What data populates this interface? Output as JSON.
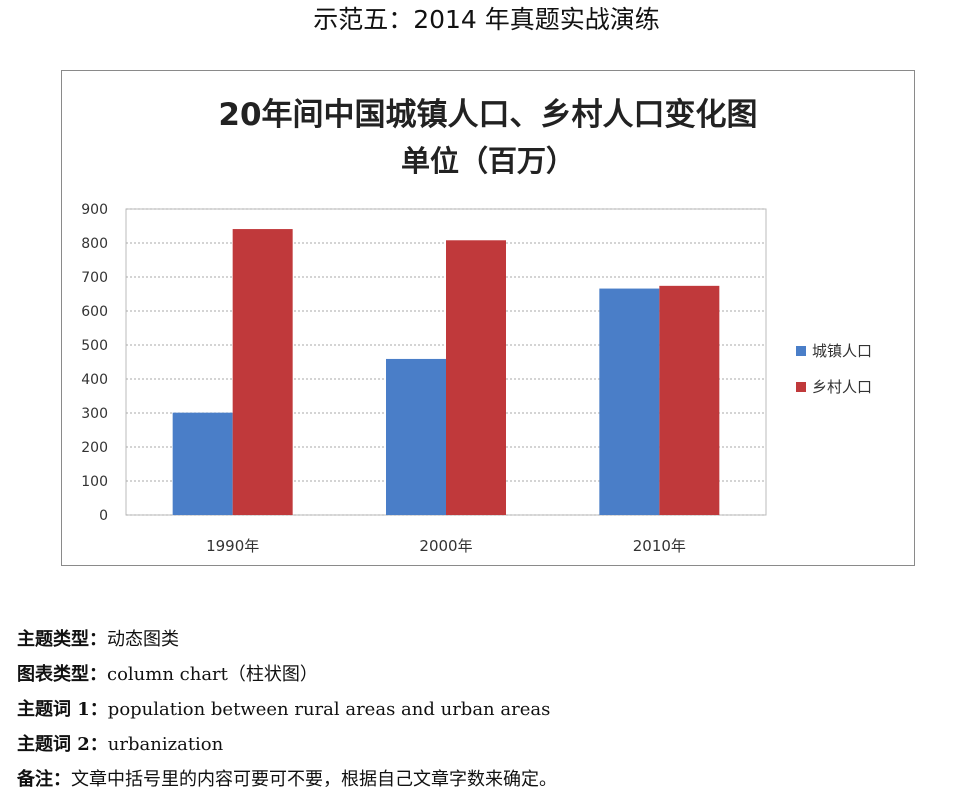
{
  "page_heading": "示范五：2014 年真题实战演练",
  "chart_data": {
    "type": "bar",
    "title": "20年间中国城镇人口、乡村人口变化图",
    "subtitle": "单位（百万）",
    "categories": [
      "1990年",
      "2000年",
      "2010年"
    ],
    "series": [
      {
        "name": "城镇人口",
        "color": "#4a7ec8",
        "values": [
          301,
          459,
          666
        ]
      },
      {
        "name": "乡村人口",
        "color": "#c0393b",
        "values": [
          841,
          808,
          674
        ]
      }
    ],
    "yticks": [
      "0",
      "100",
      "200",
      "300",
      "400",
      "500",
      "600",
      "700",
      "800",
      "900"
    ],
    "ylim": [
      0,
      900
    ],
    "grid": true,
    "legend": "right"
  },
  "notes": [
    {
      "key": "主题类型：",
      "value": "动态图类"
    },
    {
      "key": "图表类型：",
      "value": "column chart（柱状图）"
    },
    {
      "key": "主题词 1：",
      "value": "population between rural areas and urban areas"
    },
    {
      "key": "主题词 2：",
      "value": "urbanization"
    },
    {
      "key": "备注：",
      "value": "文章中括号里的内容可要可不要，根据自己文章字数来确定。"
    }
  ]
}
